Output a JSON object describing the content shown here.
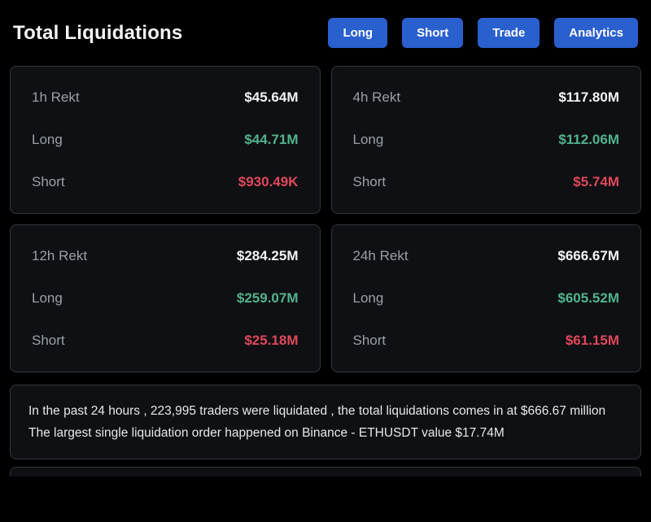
{
  "header": {
    "title": "Total Liquidations",
    "buttons": [
      {
        "label": "Long"
      },
      {
        "label": "Short"
      },
      {
        "label": "Trade"
      },
      {
        "label": "Analytics"
      }
    ]
  },
  "cards": [
    {
      "title": "1h Rekt",
      "total": "$45.64M",
      "long_label": "Long",
      "long_value": "$44.71M",
      "short_label": "Short",
      "short_value": "$930.49K"
    },
    {
      "title": "4h Rekt",
      "total": "$117.80M",
      "long_label": "Long",
      "long_value": "$112.06M",
      "short_label": "Short",
      "short_value": "$5.74M"
    },
    {
      "title": "12h Rekt",
      "total": "$284.25M",
      "long_label": "Long",
      "long_value": "$259.07M",
      "short_label": "Short",
      "short_value": "$25.18M"
    },
    {
      "title": "24h Rekt",
      "total": "$666.67M",
      "long_label": "Long",
      "long_value": "$605.52M",
      "short_label": "Short",
      "short_value": "$61.15M"
    }
  ],
  "summary": {
    "line1": "In the past 24 hours , 223,995 traders were liquidated , the total liquidations comes in at $666.67 million",
    "line2": "The largest single liquidation order happened on Binance - ETHUSDT value $17.74M"
  },
  "colors": {
    "background": "#000000",
    "card_background": "#0e1014",
    "card_border": "#33363c",
    "accent_blue": "#2a5fce",
    "long_green": "#52b38c",
    "short_red": "#e1485a",
    "label_gray": "#9aa0a8",
    "text_white": "#f2f3f5"
  }
}
